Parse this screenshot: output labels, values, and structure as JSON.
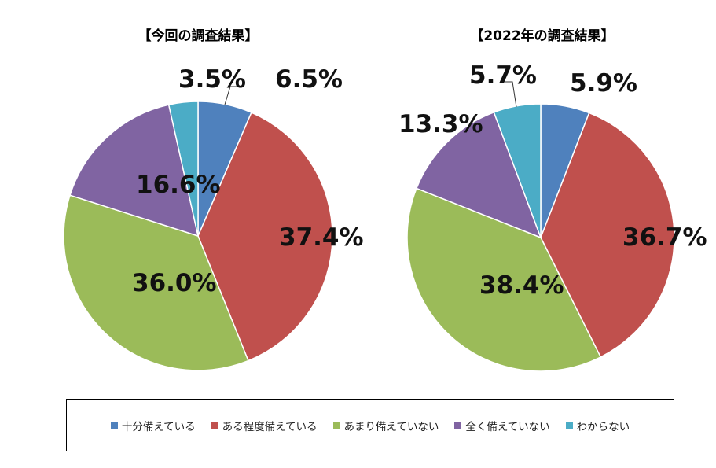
{
  "colors": {
    "sufficient": "#4F81BD",
    "somewhat": "#C0504D",
    "not_much": "#9BBB59",
    "not_at_all": "#8064A2",
    "unknown": "#4BACC6"
  },
  "legend": [
    {
      "label": "十分備えている",
      "color": "#4F81BD"
    },
    {
      "label": "ある程度備えている",
      "color": "#C0504D"
    },
    {
      "label": "あまり備えていない",
      "color": "#9BBB59"
    },
    {
      "label": "全く備えていない",
      "color": "#8064A2"
    },
    {
      "label": "わからない",
      "color": "#4BACC6"
    }
  ],
  "chart_data": [
    {
      "type": "pie",
      "title": "【今回の調査結果】",
      "categories": [
        "十分備えている",
        "ある程度備えている",
        "あまり備えていない",
        "全く備えていない",
        "わからない"
      ],
      "values": [
        6.5,
        37.4,
        36.0,
        16.6,
        3.5
      ],
      "labels": [
        "6.5%",
        "37.4%",
        "36.0%",
        "16.6%",
        "3.5%"
      ]
    },
    {
      "type": "pie",
      "title": "【2022年の調査結果】",
      "categories": [
        "十分備えている",
        "ある程度備えている",
        "あまり備えていない",
        "全く備えていない",
        "わからない"
      ],
      "values": [
        5.9,
        36.7,
        38.4,
        13.3,
        5.7
      ],
      "labels": [
        "5.9%",
        "36.7%",
        "38.4%",
        "13.3%",
        "5.7%"
      ]
    }
  ]
}
